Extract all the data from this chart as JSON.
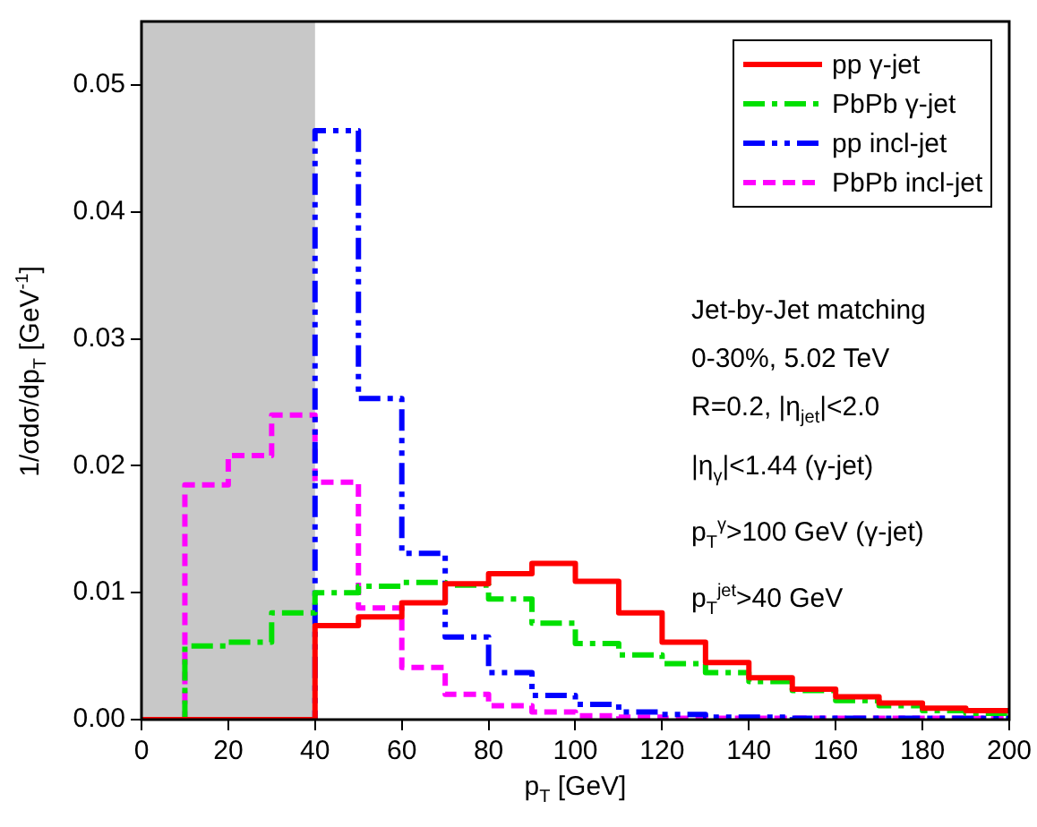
{
  "chart_data": {
    "type": "histogram",
    "xlabel": "p$_{T}$ [GeV]",
    "ylabel": "1/σdσ/dp$_{T}$ [GeV$^{-1}$]",
    "bins": [
      0,
      10,
      20,
      30,
      40,
      50,
      60,
      70,
      80,
      90,
      100,
      110,
      120,
      130,
      140,
      150,
      160,
      170,
      180,
      190,
      200
    ],
    "series": [
      {
        "name": "pp γ-jet",
        "color": "#ff0000",
        "line_style": "solid",
        "values": [
          0,
          0,
          0,
          0,
          0.0074,
          0.0081,
          0.0092,
          0.0107,
          0.0115,
          0.0123,
          0.0109,
          0.0084,
          0.0061,
          0.0045,
          0.0033,
          0.0024,
          0.0018,
          0.0013,
          0.0009,
          0.0007
        ]
      },
      {
        "name": "PbPb γ-jet",
        "color": "#00e000",
        "line_style": "dashdot",
        "values": [
          0,
          0.0058,
          0.0061,
          0.0084,
          0.01,
          0.0105,
          0.0108,
          0.0106,
          0.0095,
          0.0076,
          0.006,
          0.0051,
          0.0044,
          0.0037,
          0.003,
          0.0023,
          0.0015,
          0.0011,
          0.0007,
          0.0005
        ]
      },
      {
        "name": "pp incl-jet",
        "color": "#0000ff",
        "line_style": "dashdotdot",
        "values": [
          0,
          0,
          0,
          0,
          0.0464,
          0.0253,
          0.0131,
          0.0065,
          0.0037,
          0.0019,
          0.0012,
          0.0006,
          0.0004,
          0.0002,
          0.0002,
          0.0001,
          0.0001,
          0.0001,
          0.0001,
          0.0001
        ]
      },
      {
        "name": "PbPb incl-jet",
        "color": "#ff00ff",
        "line_style": "dashed",
        "values": [
          0,
          0.0185,
          0.0208,
          0.024,
          0.0187,
          0.0088,
          0.0041,
          0.002,
          0.0011,
          0.0006,
          0.0003,
          0.0002,
          0.0001,
          0.0001,
          0.0001,
          0.0001,
          0.0001,
          0.0001,
          0.0001,
          0.0001
        ]
      }
    ],
    "xlim": [
      0,
      200
    ],
    "xticks": [
      0,
      20,
      40,
      60,
      80,
      100,
      120,
      140,
      160,
      180,
      200
    ],
    "ylim": [
      0,
      0.055
    ],
    "yticks": [
      {
        "value": 0,
        "label": "0.00"
      },
      {
        "value": 0.01,
        "label": "0.01"
      },
      {
        "value": 0.02,
        "label": "0.02"
      },
      {
        "value": 0.03,
        "label": "0.03"
      },
      {
        "value": 0.04,
        "label": "0.04"
      },
      {
        "value": 0.05,
        "label": "0.05"
      }
    ],
    "bands": [
      {
        "axis": "x",
        "from": 0,
        "to": 40,
        "color": "#c8c8c8"
      }
    ],
    "annotations": [
      "Jet-by-Jet matching",
      "0-30%, 5.02 TeV",
      "R=0.2, |η$_{jet}$|<2.0",
      "|η$_{γ}$|<1.44 (γ-jet)",
      "p$_{T}$$^{γ}$>100 GeV (γ-jet)",
      "p$_{T}$$^{jet}$>40 GeV"
    ],
    "legend": "top right",
    "grid": false
  }
}
